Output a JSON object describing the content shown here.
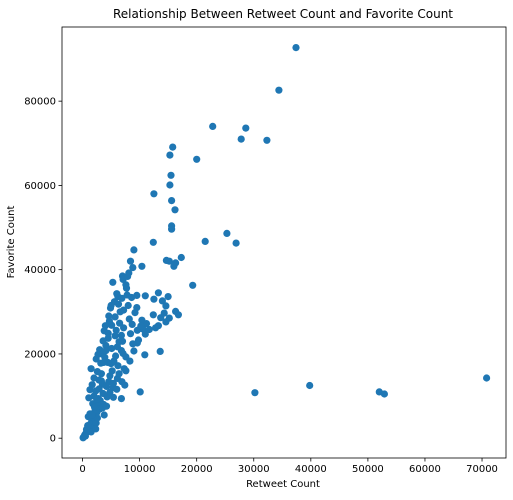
{
  "chart_data": {
    "type": "scatter",
    "title": "Relationship Between Retweet Count and Favorite Count",
    "xlabel": "Retweet Count",
    "ylabel": "Favorite Count",
    "xlim": [
      -3600,
      74200
    ],
    "ylim": [
      -4700,
      97600
    ],
    "xticks": [
      0,
      10000,
      20000,
      30000,
      40000,
      50000,
      60000,
      70000
    ],
    "xtick_labels": [
      "0",
      "10000",
      "20000",
      "30000",
      "40000",
      "50000",
      "60000",
      "70000"
    ],
    "yticks": [
      0,
      20000,
      40000,
      60000,
      80000
    ],
    "ytick_labels": [
      "0",
      "20000",
      "40000",
      "60000",
      "80000"
    ],
    "grid": false,
    "marker_color": "#1f77b4",
    "series": [
      {
        "points": [
          [
            37400,
            92700
          ],
          [
            34400,
            82600
          ],
          [
            22800,
            74000
          ],
          [
            28600,
            73600
          ],
          [
            27800,
            71000
          ],
          [
            32300,
            70700
          ],
          [
            15800,
            69100
          ],
          [
            15300,
            67200
          ],
          [
            20000,
            66200
          ],
          [
            15500,
            62400
          ],
          [
            15300,
            60100
          ],
          [
            12500,
            58000
          ],
          [
            15600,
            56400
          ],
          [
            16200,
            54200
          ],
          [
            15600,
            50400
          ],
          [
            25300,
            48600
          ],
          [
            15600,
            49600
          ],
          [
            21500,
            46700
          ],
          [
            26900,
            46300
          ],
          [
            12400,
            46500
          ],
          [
            9000,
            44700
          ],
          [
            14700,
            42200
          ],
          [
            15200,
            42000
          ],
          [
            16300,
            41600
          ],
          [
            16000,
            40800
          ],
          [
            17300,
            42900
          ],
          [
            8400,
            42000
          ],
          [
            8100,
            39200
          ],
          [
            8800,
            40500
          ],
          [
            10400,
            40800
          ],
          [
            7000,
            38500
          ],
          [
            5300,
            37000
          ],
          [
            7600,
            36400
          ],
          [
            19300,
            36300
          ],
          [
            6200,
            33600
          ],
          [
            7800,
            34000
          ],
          [
            9500,
            33900
          ],
          [
            11000,
            33800
          ],
          [
            12500,
            33000
          ],
          [
            13300,
            34500
          ],
          [
            14000,
            32600
          ],
          [
            15000,
            33600
          ],
          [
            14600,
            31400
          ],
          [
            16300,
            30100
          ],
          [
            16800,
            29300
          ],
          [
            14300,
            29700
          ],
          [
            12400,
            29300
          ],
          [
            13700,
            28600
          ],
          [
            15200,
            28500
          ],
          [
            11200,
            27200
          ],
          [
            12800,
            26200
          ],
          [
            10600,
            25900
          ],
          [
            13300,
            26700
          ],
          [
            14600,
            27600
          ],
          [
            8700,
            27000
          ],
          [
            11000,
            24700
          ],
          [
            9600,
            22600
          ],
          [
            10900,
            19800
          ],
          [
            13600,
            20600
          ],
          [
            6800,
            20800
          ],
          [
            7300,
            16500
          ],
          [
            10100,
            11000
          ],
          [
            30200,
            10800
          ],
          [
            39800,
            12500
          ],
          [
            52000,
            11000
          ],
          [
            52900,
            10500
          ],
          [
            70800,
            14300
          ],
          [
            6100,
            14200
          ],
          [
            5300,
            12000
          ],
          [
            7400,
            12600
          ],
          [
            6800,
            9400
          ],
          [
            1300,
            11500
          ],
          [
            3000,
            21000
          ],
          [
            2400,
            18800
          ],
          [
            1500,
            16500
          ],
          [
            3800,
            25500
          ],
          [
            4600,
            29000
          ],
          [
            5600,
            32400
          ],
          [
            4900,
            30900
          ],
          [
            5900,
            25600
          ],
          [
            6500,
            27300
          ],
          [
            4100,
            22000
          ],
          [
            5000,
            17700
          ],
          [
            3600,
            10600
          ],
          [
            2700,
            7900
          ],
          [
            3800,
            5500
          ],
          [
            2100,
            4500
          ],
          [
            1200,
            2700
          ],
          [
            800,
            1700
          ],
          [
            400,
            800
          ],
          [
            200,
            300
          ],
          [
            600,
            1200
          ],
          [
            1600,
            4400
          ],
          [
            2500,
            6100
          ],
          [
            3100,
            8900
          ],
          [
            4200,
            12300
          ],
          [
            4800,
            14800
          ],
          [
            5500,
            18300
          ],
          [
            6100,
            21700
          ],
          [
            6800,
            24400
          ],
          [
            7200,
            26200
          ],
          [
            3300,
            15300
          ],
          [
            3900,
            19200
          ],
          [
            4500,
            23700
          ],
          [
            2900,
            13800
          ],
          [
            2300,
            11200
          ],
          [
            1800,
            8200
          ],
          [
            1000,
            5100
          ],
          [
            2000,
            10000
          ],
          [
            5200,
            16000
          ],
          [
            5800,
            19500
          ],
          [
            6400,
            22900
          ],
          [
            7000,
            23000
          ],
          [
            4400,
            18000
          ],
          [
            3500,
            12800
          ],
          [
            2800,
            9400
          ],
          [
            2200,
            6600
          ],
          [
            1400,
            3400
          ],
          [
            8200,
            28300
          ],
          [
            9200,
            29800
          ],
          [
            8000,
            31500
          ],
          [
            7200,
            30400
          ],
          [
            6600,
            30000
          ],
          [
            3400,
            20000
          ],
          [
            4000,
            26700
          ],
          [
            5100,
            21300
          ],
          [
            5700,
            24300
          ],
          [
            6200,
            17200
          ],
          [
            4600,
            13400
          ],
          [
            3700,
            8000
          ],
          [
            4300,
            9800
          ],
          [
            5400,
            13000
          ],
          [
            6400,
            15300
          ],
          [
            7600,
            19300
          ],
          [
            8800,
            22400
          ],
          [
            9600,
            25600
          ],
          [
            10400,
            28000
          ],
          [
            8400,
            24800
          ],
          [
            7100,
            20100
          ],
          [
            2600,
            15800
          ],
          [
            1700,
            12700
          ],
          [
            1100,
            9600
          ],
          [
            3200,
            17800
          ],
          [
            300,
            400
          ],
          [
            700,
            2100
          ],
          [
            1300,
            5800
          ],
          [
            1900,
            2600
          ],
          [
            2400,
            3600
          ],
          [
            2600,
            4800
          ],
          [
            3000,
            6900
          ],
          [
            3500,
            7200
          ],
          [
            4200,
            7600
          ],
          [
            4800,
            10900
          ],
          [
            5400,
            9700
          ],
          [
            6000,
            11600
          ],
          [
            6900,
            13400
          ],
          [
            7600,
            16000
          ],
          [
            8300,
            18300
          ],
          [
            9000,
            20700
          ],
          [
            9800,
            23300
          ],
          [
            11700,
            25800
          ],
          [
            10200,
            26600
          ],
          [
            9500,
            31000
          ],
          [
            8600,
            33400
          ],
          [
            7700,
            35600
          ],
          [
            6900,
            33200
          ],
          [
            6300,
            31800
          ],
          [
            5700,
            28800
          ],
          [
            5100,
            26800
          ],
          [
            4500,
            24900
          ],
          [
            4100,
            20800
          ],
          [
            3700,
            18000
          ],
          [
            3300,
            13600
          ],
          [
            2900,
            11700
          ],
          [
            2500,
            9200
          ],
          [
            2100,
            7400
          ],
          [
            1700,
            5500
          ],
          [
            900,
            3000
          ],
          [
            1500,
            1500
          ],
          [
            2300,
            2200
          ],
          [
            100,
            100
          ],
          [
            500,
            500
          ],
          [
            2000,
            14300
          ],
          [
            2700,
            19900
          ],
          [
            3600,
            23100
          ],
          [
            4700,
            27800
          ],
          [
            5000,
            31500
          ],
          [
            6000,
            34300
          ],
          [
            7100,
            37700
          ],
          [
            7900,
            38400
          ]
        ]
      }
    ]
  }
}
